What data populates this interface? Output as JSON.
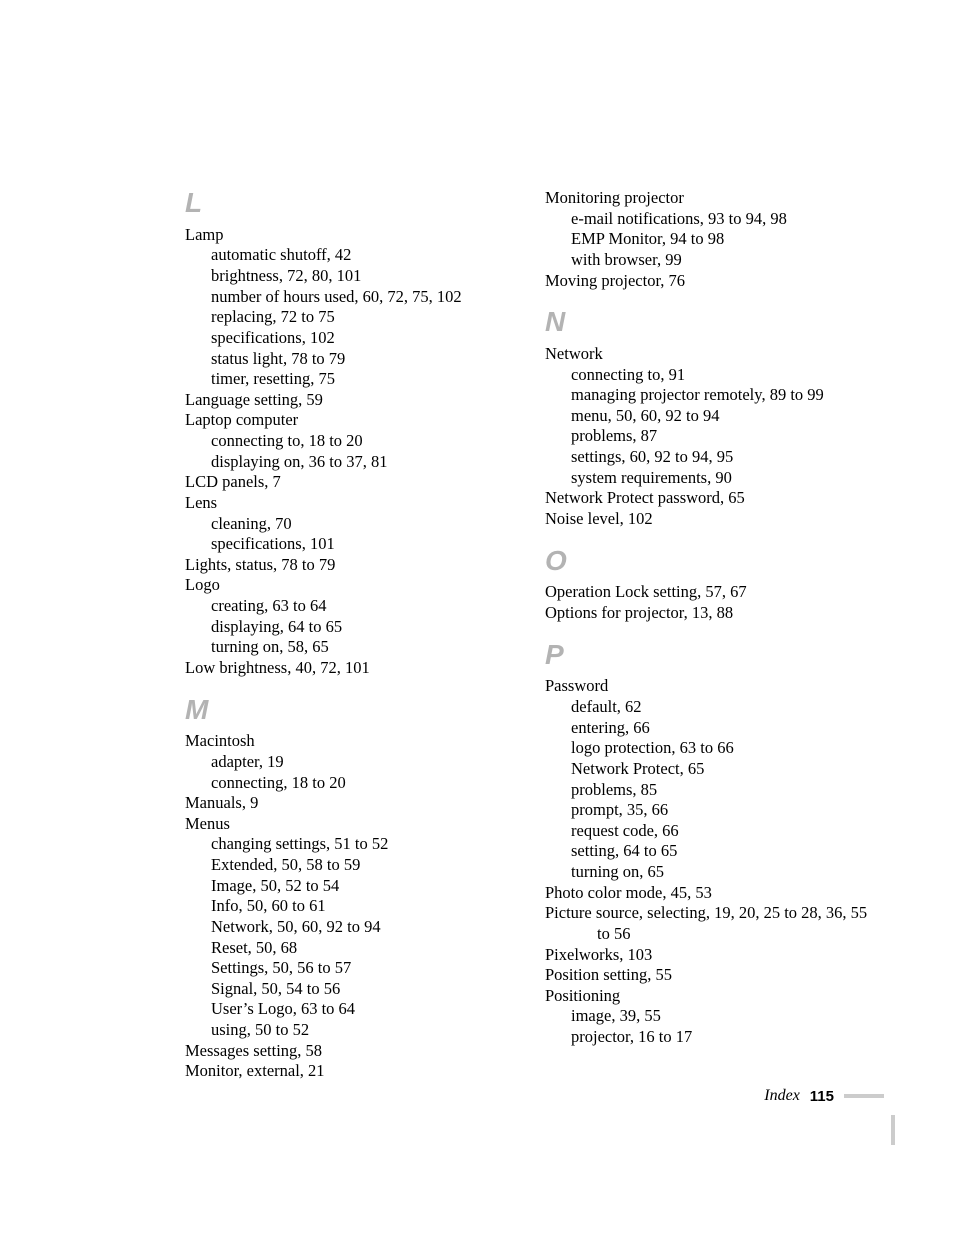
{
  "colors": {
    "page_bg": "#ffffff",
    "text": "#000000",
    "letter": "#b3b3b3",
    "rule": "#cccccc"
  },
  "typography": {
    "body_family": "Garamond serif",
    "body_size_pt": 12,
    "letter_family": "Arial Black italic",
    "letter_size_pt": 21,
    "footer_page_family": "Arial bold"
  },
  "footer": {
    "label": "Index",
    "page_number": "115"
  },
  "left": [
    {
      "type": "letter",
      "text": "L"
    },
    {
      "type": "entry",
      "text": "Lamp"
    },
    {
      "type": "sub",
      "text": "automatic shutoff, 42"
    },
    {
      "type": "sub",
      "text": "brightness, 72, 80, 101"
    },
    {
      "type": "sub",
      "text": "number of hours used, 60, 72, 75, 102"
    },
    {
      "type": "sub",
      "text": "replacing, 72 to 75"
    },
    {
      "type": "sub",
      "text": "specifications, 102"
    },
    {
      "type": "sub",
      "text": "status light, 78 to 79"
    },
    {
      "type": "sub",
      "text": "timer, resetting, 75"
    },
    {
      "type": "entry",
      "text": "Language setting, 59"
    },
    {
      "type": "entry",
      "text": "Laptop computer"
    },
    {
      "type": "sub",
      "text": "connecting to, 18 to 20"
    },
    {
      "type": "sub",
      "text": "displaying on, 36 to 37, 81"
    },
    {
      "type": "entry",
      "text": "LCD panels, 7"
    },
    {
      "type": "entry",
      "text": "Lens"
    },
    {
      "type": "sub",
      "text": "cleaning, 70"
    },
    {
      "type": "sub",
      "text": "specifications, 101"
    },
    {
      "type": "entry",
      "text": "Lights, status, 78 to 79"
    },
    {
      "type": "entry",
      "text": "Logo"
    },
    {
      "type": "sub",
      "text": "creating, 63 to 64"
    },
    {
      "type": "sub",
      "text": "displaying, 64 to 65"
    },
    {
      "type": "sub",
      "text": "turning on, 58, 65"
    },
    {
      "type": "entry",
      "text": "Low brightness, 40, 72, 101"
    },
    {
      "type": "letter",
      "text": "M"
    },
    {
      "type": "entry",
      "text": "Macintosh"
    },
    {
      "type": "sub",
      "text": "adapter, 19"
    },
    {
      "type": "sub",
      "text": "connecting, 18 to 20"
    },
    {
      "type": "entry",
      "text": "Manuals, 9"
    },
    {
      "type": "entry",
      "text": "Menus"
    },
    {
      "type": "sub",
      "text": "changing settings, 51 to 52"
    },
    {
      "type": "sub",
      "text": "Extended, 50, 58 to 59"
    },
    {
      "type": "sub",
      "text": "Image, 50, 52 to 54"
    },
    {
      "type": "sub",
      "text": "Info, 50, 60 to 61"
    },
    {
      "type": "sub",
      "text": "Network, 50, 60, 92 to 94"
    },
    {
      "type": "sub",
      "text": "Reset, 50, 68"
    },
    {
      "type": "sub",
      "text": "Settings, 50, 56 to 57"
    },
    {
      "type": "sub",
      "text": "Signal, 50, 54 to 56"
    },
    {
      "type": "sub",
      "text": "User’s Logo, 63 to 64"
    },
    {
      "type": "sub",
      "text": "using, 50 to 52"
    },
    {
      "type": "entry",
      "text": "Messages setting, 58"
    },
    {
      "type": "entry",
      "text": "Monitor, external, 21"
    }
  ],
  "right": [
    {
      "type": "entry",
      "text": "Monitoring projector"
    },
    {
      "type": "sub",
      "text": "e-mail notifications, 93 to 94, 98"
    },
    {
      "type": "sub",
      "text": "EMP Monitor, 94 to 98"
    },
    {
      "type": "sub",
      "text": "with browser, 99"
    },
    {
      "type": "entry",
      "text": "Moving projector, 76"
    },
    {
      "type": "letter",
      "text": "N"
    },
    {
      "type": "entry",
      "text": "Network"
    },
    {
      "type": "sub",
      "text": "connecting to, 91"
    },
    {
      "type": "sub",
      "text": "managing projector remotely, 89 to 99"
    },
    {
      "type": "sub",
      "text": "menu, 50, 60, 92 to 94"
    },
    {
      "type": "sub",
      "text": "problems, 87"
    },
    {
      "type": "sub",
      "text": "settings, 60, 92 to 94, 95"
    },
    {
      "type": "sub",
      "text": "system requirements, 90"
    },
    {
      "type": "entry",
      "text": "Network Protect password, 65"
    },
    {
      "type": "entry",
      "text": "Noise level, 102"
    },
    {
      "type": "letter",
      "text": "O"
    },
    {
      "type": "entry",
      "text": "Operation Lock setting, 57, 67"
    },
    {
      "type": "entry",
      "text": "Options for projector, 13, 88"
    },
    {
      "type": "letter",
      "text": "P"
    },
    {
      "type": "entry",
      "text": "Password"
    },
    {
      "type": "sub",
      "text": "default, 62"
    },
    {
      "type": "sub",
      "text": "entering, 66"
    },
    {
      "type": "sub",
      "text": "logo protection, 63 to 66"
    },
    {
      "type": "sub",
      "text": "Network Protect, 65"
    },
    {
      "type": "sub",
      "text": "problems, 85"
    },
    {
      "type": "sub",
      "text": "prompt, 35, 66"
    },
    {
      "type": "sub",
      "text": "request code, 66"
    },
    {
      "type": "sub",
      "text": "setting, 64 to 65"
    },
    {
      "type": "sub",
      "text": "turning on, 65"
    },
    {
      "type": "entry",
      "text": "Photo color mode, 45, 53"
    },
    {
      "type": "entry",
      "text": "Picture source, selecting, 19, 20, 25 to 28, 36, 55 to 56",
      "hang": true
    },
    {
      "type": "entry",
      "text": "Pixelworks, 103"
    },
    {
      "type": "entry",
      "text": "Position setting, 55"
    },
    {
      "type": "entry",
      "text": "Positioning"
    },
    {
      "type": "sub",
      "text": "image, 39, 55"
    },
    {
      "type": "sub",
      "text": "projector, 16 to 17"
    }
  ]
}
